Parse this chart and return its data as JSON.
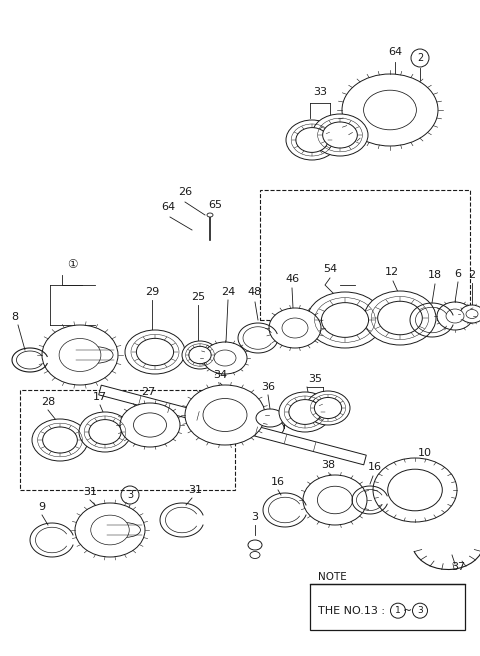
{
  "bg": "#ffffff",
  "lc": "#1a1a1a",
  "note_text1": "NOTE",
  "note_text2": "THE NO.13 : ① ~ ③",
  "fig_w": 4.8,
  "fig_h": 6.56,
  "dpi": 100
}
